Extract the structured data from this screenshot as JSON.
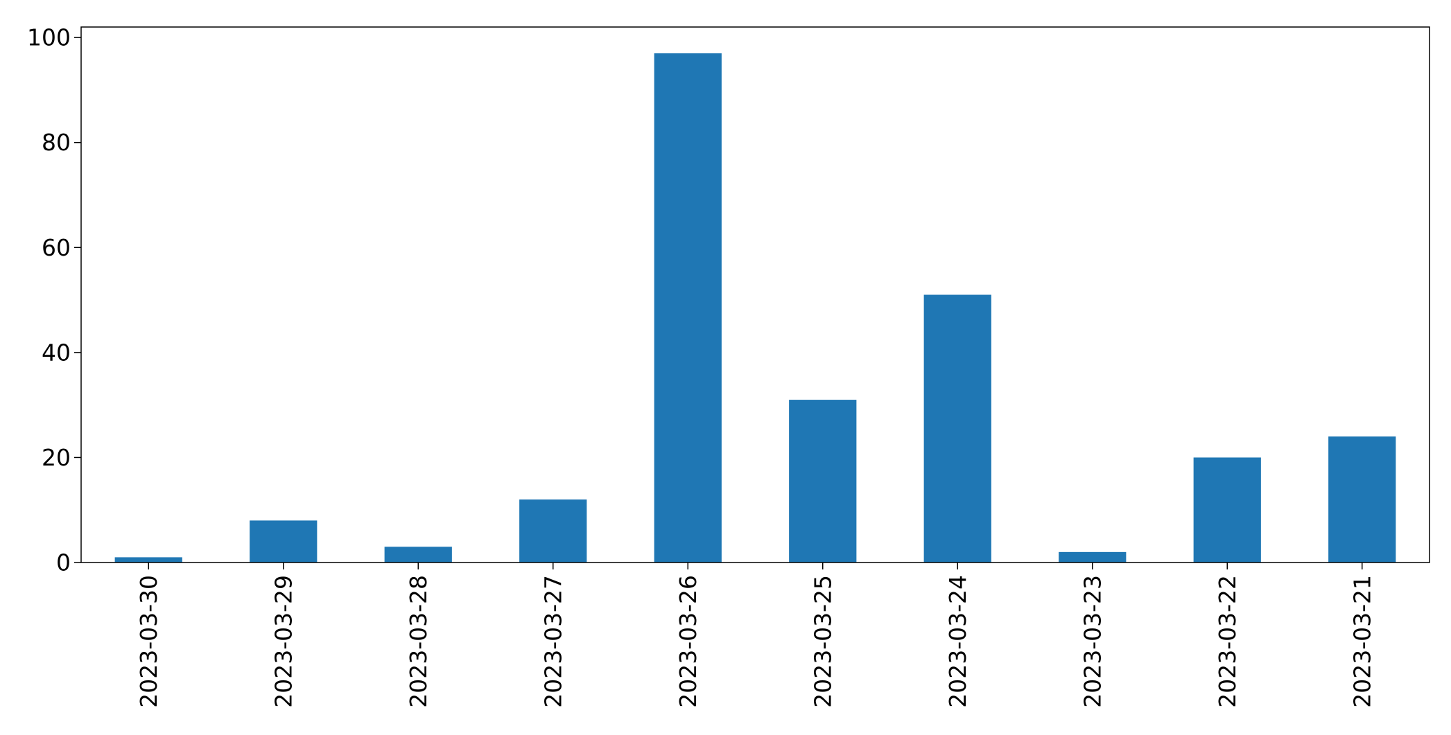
{
  "chart_data": {
    "type": "bar",
    "categories": [
      "2023-03-30",
      "2023-03-29",
      "2023-03-28",
      "2023-03-27",
      "2023-03-26",
      "2023-03-25",
      "2023-03-24",
      "2023-03-23",
      "2023-03-22",
      "2023-03-21"
    ],
    "values": [
      1,
      8,
      3,
      12,
      97,
      31,
      51,
      2,
      20,
      24
    ],
    "title": "",
    "xlabel": "",
    "ylabel": "",
    "ylim": [
      0,
      102
    ],
    "yticks": [
      0,
      20,
      40,
      60,
      80,
      100
    ],
    "grid": false,
    "legend": "none",
    "bar_color": "#1f77b4",
    "xtick_rotation": "vertical"
  }
}
